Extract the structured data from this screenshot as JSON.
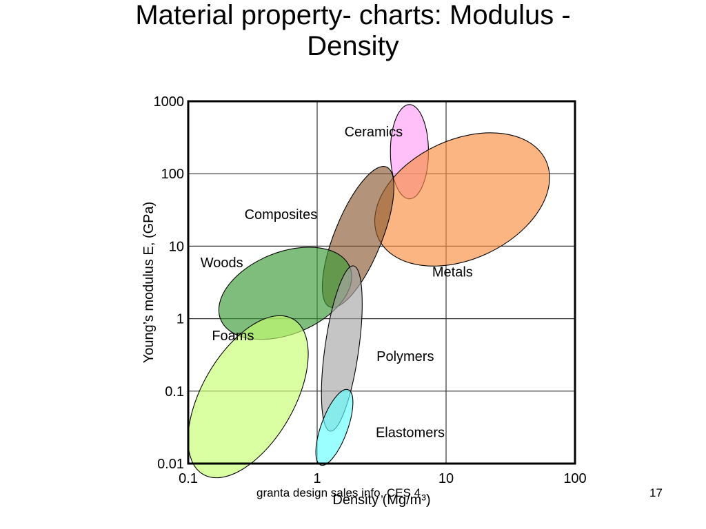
{
  "slide": {
    "title_line1": "Material property- charts: Modulus -",
    "title_line2": "Density",
    "footer": "granta design sales info, CES 4",
    "page_number": "17"
  },
  "chart_data": {
    "type": "scatter",
    "title": "",
    "xlabel": "Density (Mg/m³)",
    "ylabel": "Young’s modulus E, (GPa)",
    "x_scale": "log",
    "y_scale": "log",
    "xlim": [
      0.1,
      100
    ],
    "ylim": [
      0.01,
      1000
    ],
    "x_ticks": [
      "0.1",
      "1",
      "10",
      "100"
    ],
    "y_ticks": [
      "0.01",
      "0.1",
      "1",
      "10",
      "100",
      "1000"
    ],
    "grid": true,
    "series": [
      {
        "name": "Ceramics",
        "color": "#ff9cf5",
        "x_range": [
          3.7,
          7.3
        ],
        "y_range": [
          45,
          900
        ]
      },
      {
        "name": "Metals",
        "color": "#f88d40",
        "x_range": [
          3.7,
          48
        ],
        "y_range": [
          5,
          390
        ]
      },
      {
        "name": "Composites",
        "color": "#8b5a33",
        "x_range": [
          1.2,
          3.6
        ],
        "y_range": [
          1.5,
          120
        ]
      },
      {
        "name": "Woods",
        "color": "#3a9a35",
        "x_range": [
          0.2,
          1.6
        ],
        "y_range": [
          0.5,
          10
        ]
      },
      {
        "name": "Polymers",
        "color": "#a6a6a6",
        "x_range": [
          1.05,
          2.3
        ],
        "y_range": [
          0.03,
          5
        ]
      },
      {
        "name": "Foams",
        "color": "#c6ff72",
        "x_range": [
          0.1,
          0.85
        ],
        "y_range": [
          0.01,
          0.7
        ]
      },
      {
        "name": "Elastomers",
        "color": "#66ffff",
        "x_range": [
          1.0,
          1.85
        ],
        "y_range": [
          0.01,
          0.1
        ]
      }
    ]
  }
}
